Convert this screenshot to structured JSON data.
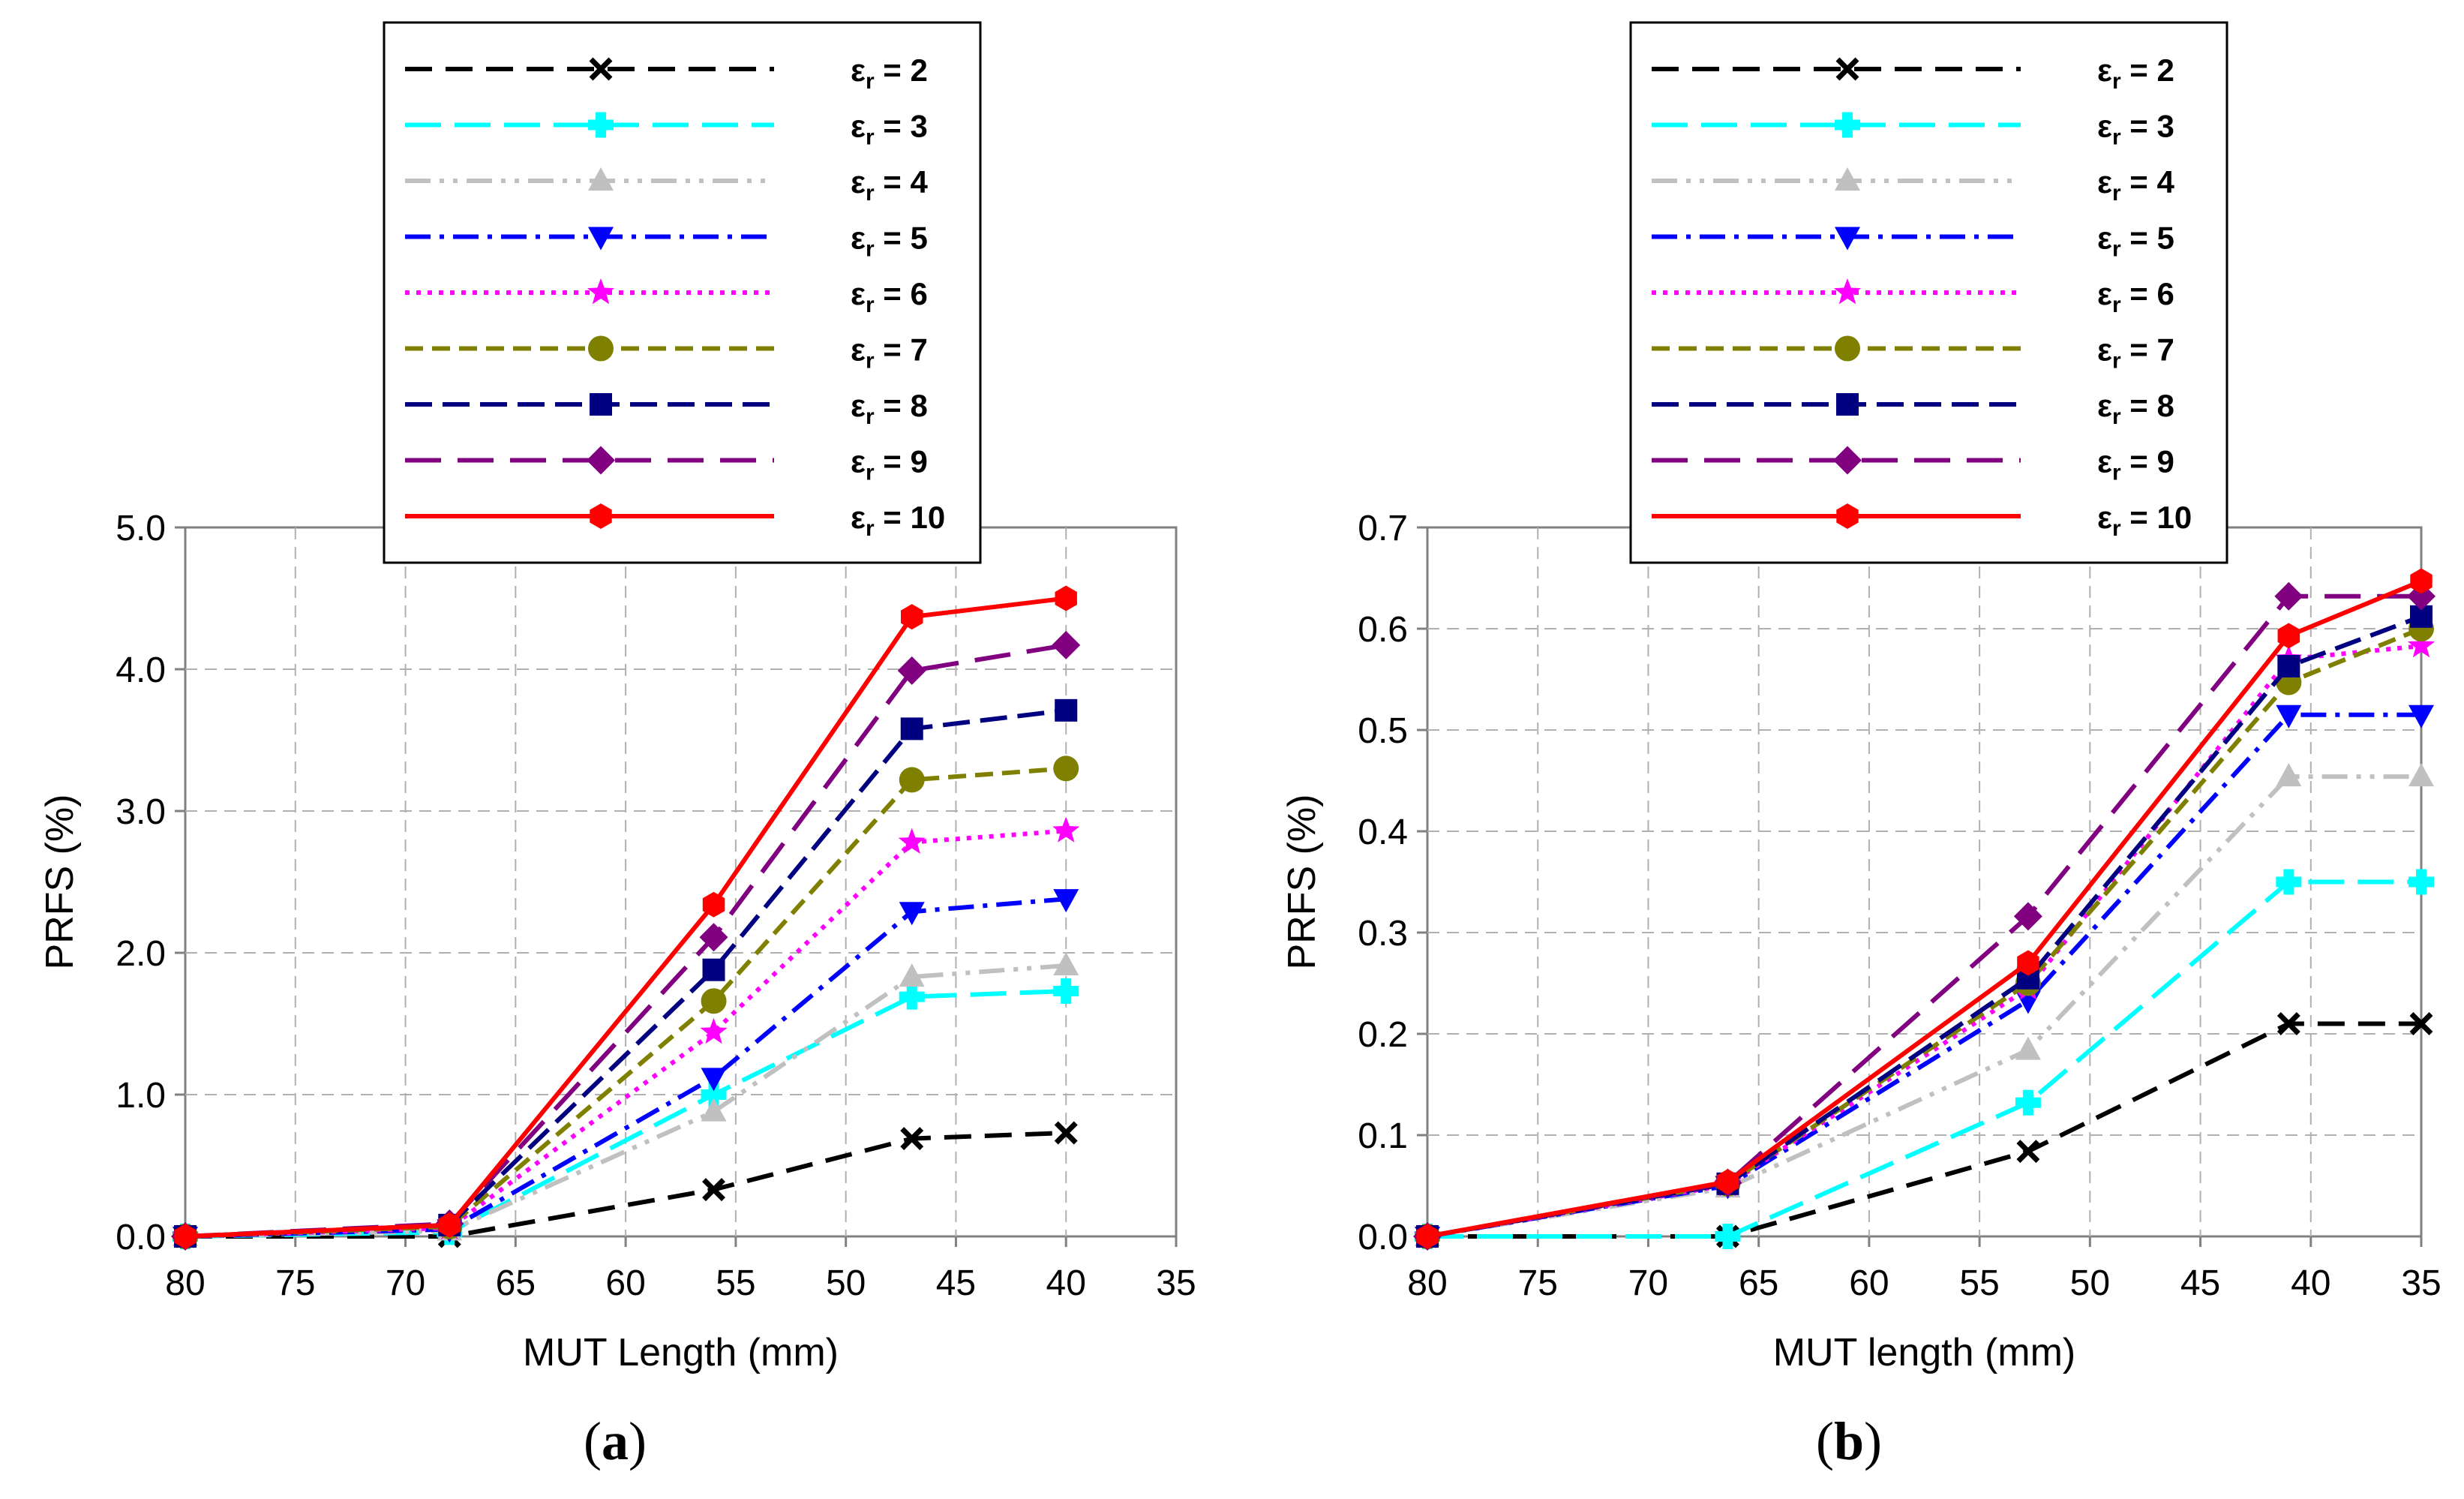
{
  "charts": [
    {
      "id": "a",
      "caption_open": "(",
      "caption_letter": "a",
      "caption_close": ")",
      "chart_data": {
        "type": "line",
        "xlabel": "MUT Length (mm)",
        "ylabel": "PRFS (%)",
        "xlim": [
          80,
          35
        ],
        "ylim": [
          0,
          5
        ],
        "x_ticks": [
          80,
          75,
          70,
          65,
          60,
          55,
          50,
          45,
          40,
          35
        ],
        "y_ticks": [
          "0.0",
          "1.0",
          "2.0",
          "3.0",
          "4.0",
          "5.0"
        ],
        "y_tick_values": [
          0,
          1,
          2,
          3,
          4,
          5
        ],
        "x": [
          80,
          68,
          56,
          47,
          40
        ],
        "series": [
          {
            "name": "2",
            "values": [
              0.0,
              0.0,
              0.33,
              0.69,
              0.73
            ]
          },
          {
            "name": "3",
            "values": [
              0.0,
              0.03,
              1.0,
              1.69,
              1.73
            ]
          },
          {
            "name": "4",
            "values": [
              0.0,
              0.04,
              0.88,
              1.83,
              1.91
            ]
          },
          {
            "name": "5",
            "values": [
              0.0,
              0.05,
              1.12,
              2.29,
              2.38
            ]
          },
          {
            "name": "6",
            "values": [
              0.0,
              0.06,
              1.44,
              2.78,
              2.86
            ]
          },
          {
            "name": "7",
            "values": [
              0.0,
              0.07,
              1.66,
              3.22,
              3.3
            ]
          },
          {
            "name": "8",
            "values": [
              0.0,
              0.08,
              1.88,
              3.58,
              3.71
            ]
          },
          {
            "name": "9",
            "values": [
              0.0,
              0.09,
              2.11,
              3.99,
              4.17
            ]
          },
          {
            "name": "10",
            "values": [
              0.0,
              0.08,
              2.34,
              4.37,
              4.5
            ]
          }
        ]
      }
    },
    {
      "id": "b",
      "caption_open": "(",
      "caption_letter": "b",
      "caption_close": ")",
      "chart_data": {
        "type": "line",
        "xlabel": "MUT length (mm)",
        "ylabel": "PRFS (%)",
        "xlim": [
          80,
          35
        ],
        "ylim": [
          0,
          0.7
        ],
        "x_ticks": [
          80,
          75,
          70,
          65,
          60,
          55,
          50,
          45,
          40,
          35
        ],
        "y_ticks": [
          "0.0",
          "0.1",
          "0.2",
          "0.3",
          "0.4",
          "0.5",
          "0.6",
          "0.7"
        ],
        "y_tick_values": [
          0,
          0.1,
          0.2,
          0.3,
          0.4,
          0.5,
          0.6,
          0.7
        ],
        "x": [
          80,
          66.4,
          52.8,
          41,
          35
        ],
        "series": [
          {
            "name": "2",
            "values": [
              0.0,
              0.0,
              0.084,
              0.21,
              0.21
            ]
          },
          {
            "name": "3",
            "values": [
              0.0,
              0.0,
              0.132,
              0.35,
              0.35
            ]
          },
          {
            "name": "4",
            "values": [
              0.0,
              0.048,
              0.184,
              0.454,
              0.454
            ]
          },
          {
            "name": "5",
            "values": [
              0.0,
              0.05,
              0.233,
              0.515,
              0.515
            ]
          },
          {
            "name": "6",
            "values": [
              0.0,
              0.051,
              0.245,
              0.57,
              0.583
            ]
          },
          {
            "name": "7",
            "values": [
              0.0,
              0.052,
              0.25,
              0.547,
              0.6
            ]
          },
          {
            "name": "8",
            "values": [
              0.0,
              0.052,
              0.255,
              0.563,
              0.612
            ]
          },
          {
            "name": "9",
            "values": [
              0.0,
              0.053,
              0.316,
              0.632,
              0.632
            ]
          },
          {
            "name": "10",
            "values": [
              0.0,
              0.054,
              0.27,
              0.593,
              0.647
            ]
          }
        ]
      }
    }
  ],
  "legend": {
    "symbol": "ε",
    "subscript": "r",
    "equals": "=",
    "entries": [
      "2",
      "3",
      "4",
      "5",
      "6",
      "7",
      "8",
      "9",
      "10"
    ]
  },
  "series_styles": [
    {
      "color": "#000000",
      "dash": "36,18",
      "marker": "x"
    },
    {
      "color": "#00FFFF",
      "dash": "48,18",
      "marker": "plus"
    },
    {
      "color": "#C0C0C0",
      "dash": "34,12,6,12,6,12",
      "marker": "triangle"
    },
    {
      "color": "#0000FF",
      "dash": "34,12,6,12",
      "marker": "triangle-down"
    },
    {
      "color": "#FF00FF",
      "dash": "6,9",
      "marker": "star"
    },
    {
      "color": "#808000",
      "dash": "24,12",
      "marker": "circle"
    },
    {
      "color": "#000080",
      "dash": "36,14",
      "marker": "square"
    },
    {
      "color": "#800080",
      "dash": "48,22",
      "marker": "diamond"
    },
    {
      "color": "#FF0000",
      "dash": "",
      "marker": "hexagon"
    }
  ]
}
